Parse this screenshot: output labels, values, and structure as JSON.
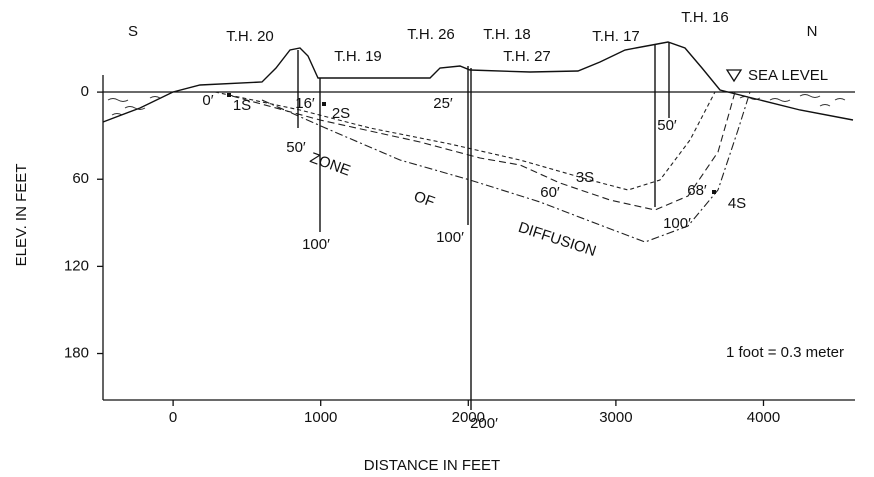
{
  "axes": {
    "x_label": "DISTANCE IN FEET",
    "y_label": "ELEV. IN FEET",
    "xlim": [
      -475,
      4620
    ],
    "xticks": [
      0,
      1000,
      2000,
      3000,
      4000
    ],
    "ylim": [
      -40,
      212
    ],
    "yticks": [
      0,
      60,
      120,
      180
    ],
    "y_inverted": true
  },
  "labels": {
    "south": "S",
    "north": "N",
    "sea_level": "SEA LEVEL",
    "scale_note": "1 foot = 0.3 meter",
    "zone": "ZONE",
    "of": "OF",
    "diffusion": "DIFFUSION"
  },
  "holes": {
    "th20": "T.H. 20",
    "th19": "T.H. 19",
    "th26": "T.H. 26",
    "th18": "T.H. 18",
    "th27": "T.H. 27",
    "th17": "T.H. 17",
    "th16": "T.H. 16"
  },
  "samples": {
    "s1": "1S",
    "s2": "2S",
    "s3": "3S",
    "s4": "4S"
  },
  "depths": {
    "d0": "0′",
    "d16": "16′",
    "d25": "25′",
    "d50a": "50′",
    "d50b": "50′",
    "d60": "60′",
    "d68": "68′",
    "d100a": "100′",
    "d100b": "100′",
    "d100c": "100′",
    "d200": "200′"
  }
}
